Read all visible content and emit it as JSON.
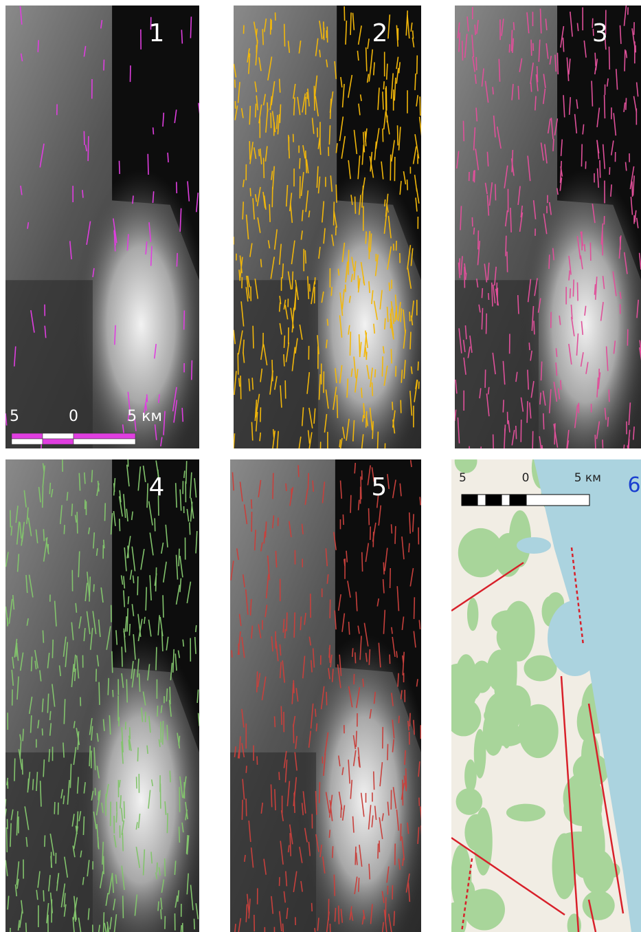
{
  "panels": [
    {
      "label": "1",
      "scale_bar": {
        "labels": [
          "5",
          "0",
          "5 км"
        ]
      }
    },
    {
      "label": "2"
    },
    {
      "label": "3"
    },
    {
      "label": "4"
    },
    {
      "label": "5"
    },
    {
      "label": "6",
      "scale_bar": {
        "labels": [
          "5",
          "0",
          "5 км"
        ]
      }
    }
  ]
}
